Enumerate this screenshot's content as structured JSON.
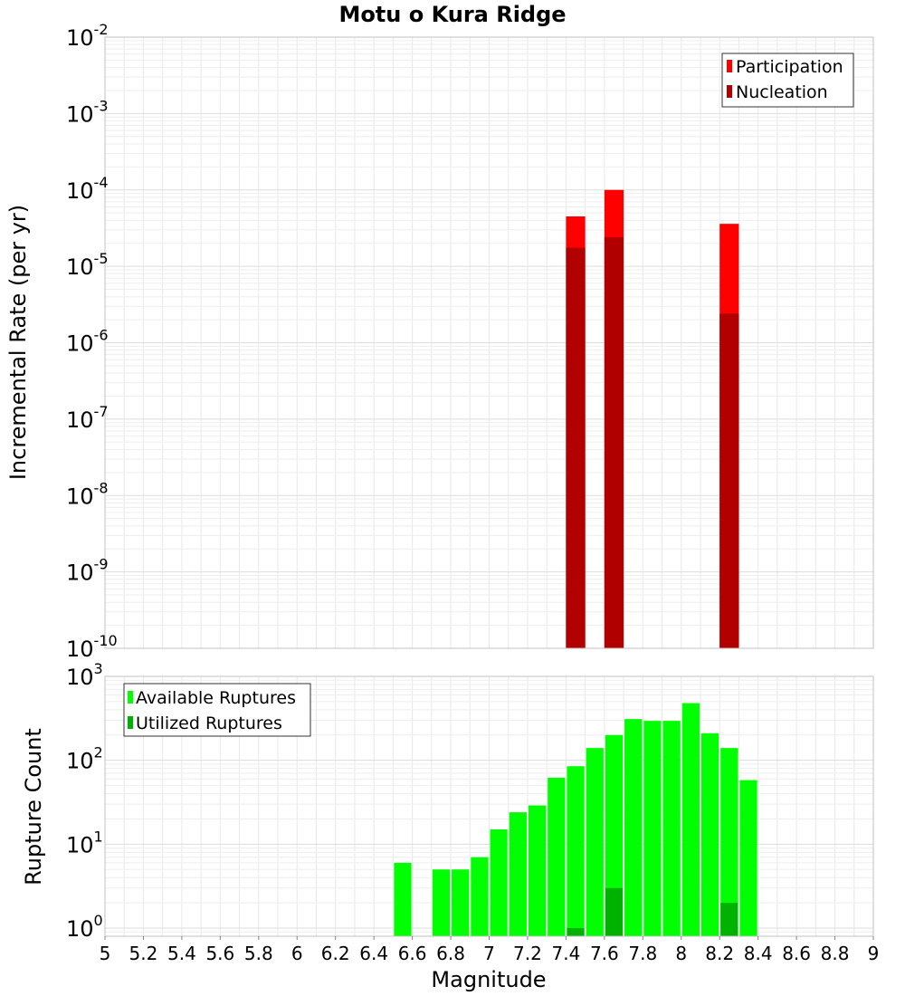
{
  "chart_data": [
    {
      "type": "bar",
      "title": "Motu o Kura Ridge",
      "xlabel": "",
      "ylabel": "Incremental Rate (per yr)",
      "y_scale": "log",
      "ylim": [
        1e-10,
        0.01
      ],
      "xlim": [
        5,
        9
      ],
      "y_tick_bases": [
        "10",
        "10",
        "10",
        "10",
        "10",
        "10",
        "10",
        "10",
        "10"
      ],
      "y_tick_exponents": [
        "-10",
        "-9",
        "-8",
        "-7",
        "-6",
        "-5",
        "-4",
        "-3",
        "-2"
      ],
      "legend_position": "top-right",
      "grid": true,
      "series": [
        {
          "name": "Participation",
          "color": "#ff0000",
          "points": [
            {
              "x": 7.45,
              "y": 4.5e-05
            },
            {
              "x": 7.65,
              "y": 0.0001
            },
            {
              "x": 8.25,
              "y": 3.6e-05
            }
          ]
        },
        {
          "name": "Nucleation",
          "color": "#b20000",
          "points": [
            {
              "x": 7.45,
              "y": 1.75e-05
            },
            {
              "x": 7.65,
              "y": 2.4e-05
            },
            {
              "x": 8.25,
              "y": 2.4e-06
            }
          ]
        }
      ]
    },
    {
      "type": "bar",
      "title": "",
      "xlabel": "Magnitude",
      "ylabel": "Rupture Count",
      "y_scale": "log",
      "ylim": [
        0.8,
        1000
      ],
      "xlim": [
        5,
        9
      ],
      "y_tick_bases": [
        "10",
        "10",
        "10",
        "10"
      ],
      "y_tick_exponents": [
        "0",
        "1",
        "2",
        "3"
      ],
      "x_ticks": [
        "5",
        "5.2",
        "5.4",
        "5.6",
        "5.8",
        "6",
        "6.2",
        "6.4",
        "6.6",
        "6.8",
        "7",
        "7.2",
        "7.4",
        "7.6",
        "7.8",
        "8",
        "8.2",
        "8.4",
        "8.6",
        "8.8",
        "9"
      ],
      "legend_position": "top-left",
      "grid": true,
      "series": [
        {
          "name": "Available Ruptures",
          "color": "#00ff00",
          "points": [
            {
              "x": 6.55,
              "y": 6
            },
            {
              "x": 6.75,
              "y": 5
            },
            {
              "x": 6.85,
              "y": 5
            },
            {
              "x": 6.95,
              "y": 7
            },
            {
              "x": 7.05,
              "y": 15
            },
            {
              "x": 7.15,
              "y": 24
            },
            {
              "x": 7.25,
              "y": 29
            },
            {
              "x": 7.35,
              "y": 62
            },
            {
              "x": 7.45,
              "y": 85
            },
            {
              "x": 7.55,
              "y": 140
            },
            {
              "x": 7.65,
              "y": 200
            },
            {
              "x": 7.75,
              "y": 310
            },
            {
              "x": 7.85,
              "y": 295
            },
            {
              "x": 7.95,
              "y": 295
            },
            {
              "x": 8.05,
              "y": 480
            },
            {
              "x": 8.15,
              "y": 210
            },
            {
              "x": 8.25,
              "y": 140
            },
            {
              "x": 8.35,
              "y": 58
            }
          ]
        },
        {
          "name": "Utilized Ruptures",
          "color": "#00b200",
          "points": [
            {
              "x": 7.45,
              "y": 1
            },
            {
              "x": 7.65,
              "y": 3
            },
            {
              "x": 8.25,
              "y": 2
            }
          ]
        }
      ]
    }
  ]
}
